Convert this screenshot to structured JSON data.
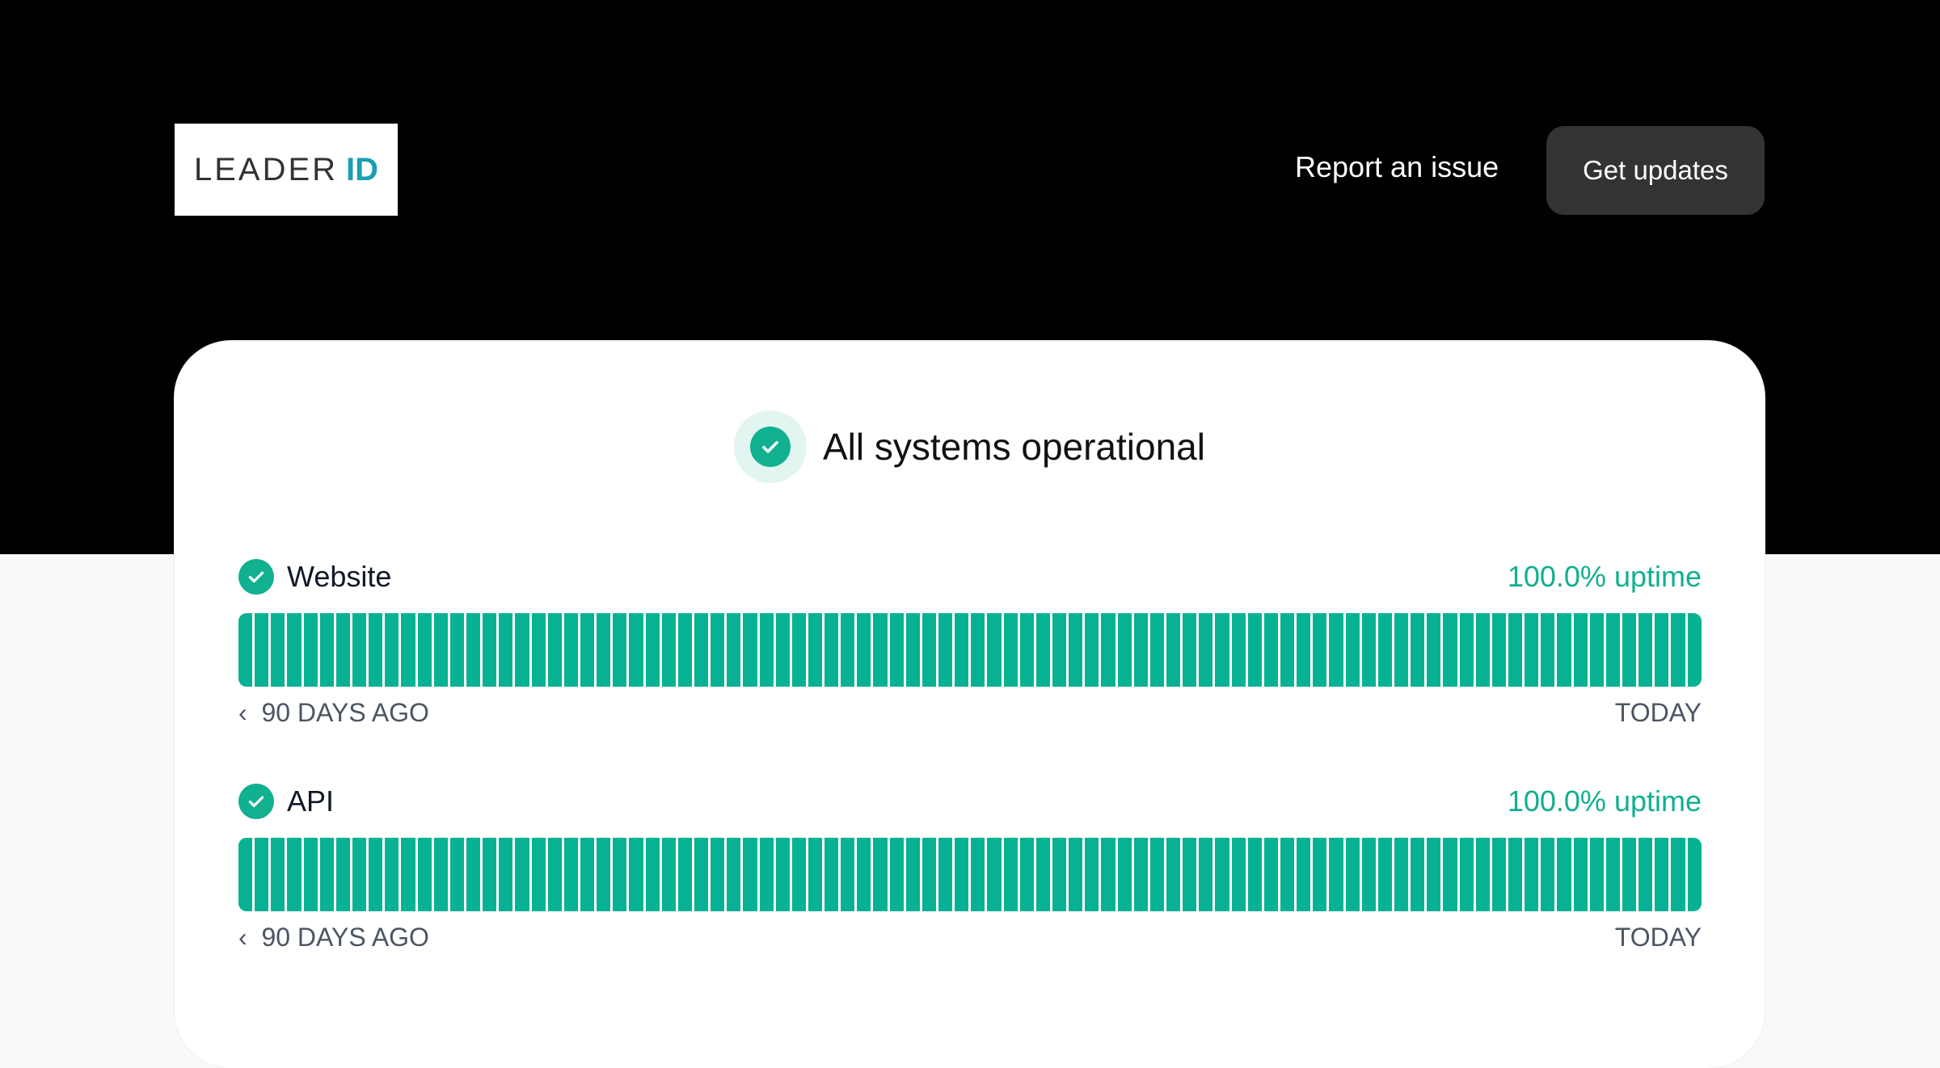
{
  "header": {
    "logo_text": "LEADER",
    "logo_accent": "ID",
    "report_label": "Report an issue",
    "updates_label": "Get updates"
  },
  "status": {
    "title": "All systems operational",
    "icon": "check-circle-icon"
  },
  "colors": {
    "accent": "#06b293",
    "header_bg": "#000000"
  },
  "components": [
    {
      "name": "Website",
      "uptime": "100.0% uptime",
      "days": 90,
      "operational_days": 90,
      "start_label": "90 DAYS AGO",
      "end_label": "TODAY"
    },
    {
      "name": "API",
      "uptime": "100.0% uptime",
      "days": 90,
      "operational_days": 90,
      "start_label": "90 DAYS AGO",
      "end_label": "TODAY"
    }
  ]
}
